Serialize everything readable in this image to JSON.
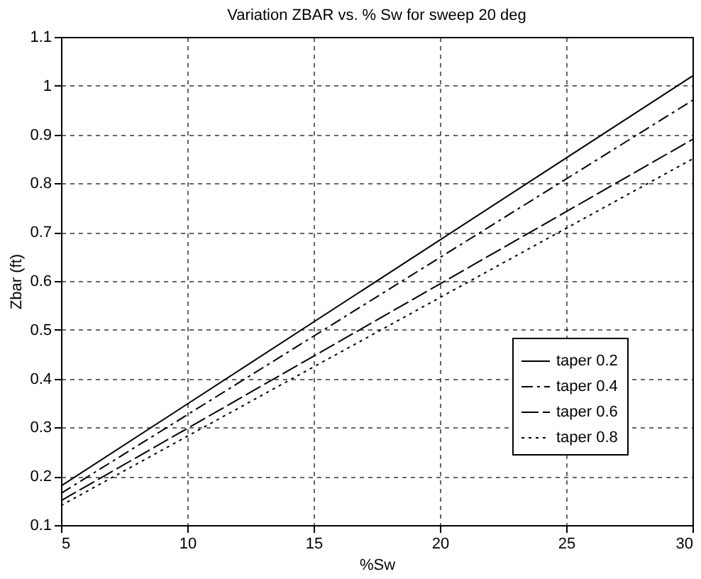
{
  "chart_data": {
    "type": "line",
    "title": "Variation ZBAR vs. % Sw for sweep 20 deg",
    "xlabel": "%Sw",
    "ylabel": "Zbar (ft)",
    "x": [
      5,
      30
    ],
    "series": [
      {
        "name": "taper 0.2",
        "color": "#000000",
        "values": [
          0.18,
          1.02
        ],
        "line_style": "solid"
      },
      {
        "name": "taper 0.4",
        "color": "#000000",
        "values": [
          0.165,
          0.97
        ],
        "line_style": "dashed"
      },
      {
        "name": "taper 0.6",
        "color": "#000000",
        "values": [
          0.15,
          0.89
        ],
        "line_style": "dashed"
      },
      {
        "name": "taper 0.8",
        "color": "#000000",
        "values": [
          0.14,
          0.85
        ],
        "line_style": "dotted"
      }
    ],
    "xlim": [
      5,
      30
    ],
    "xticks": [
      5,
      10,
      15,
      20,
      25,
      30
    ],
    "ylim": [
      0.1,
      1.1
    ],
    "yticks": [
      0.1,
      0.2,
      0.3,
      0.4,
      0.5,
      0.6,
      0.7,
      0.8,
      0.9,
      {
        "value": 1,
        "label": "1"
      },
      1.1
    ],
    "grid": true,
    "legend": "right",
    "marker": "none"
  }
}
